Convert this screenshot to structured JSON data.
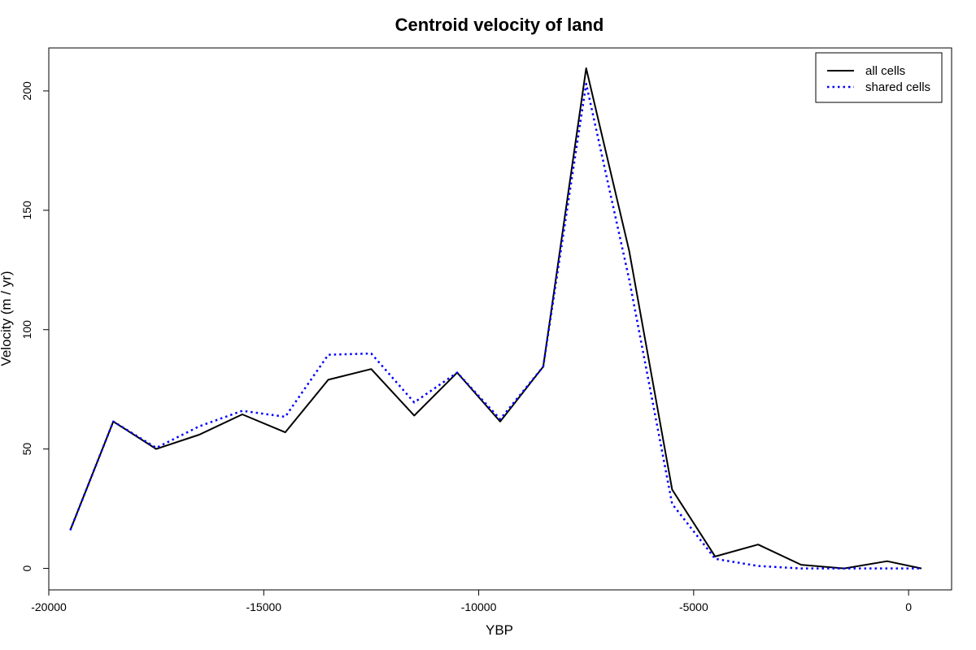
{
  "chart_data": {
    "type": "line",
    "title": "Centroid velocity of land",
    "xlabel": "YBP",
    "ylabel": "Velocity (m / yr)",
    "xlim": [
      -20000,
      1000
    ],
    "ylim": [
      -9,
      218
    ],
    "x_ticks": [
      -20000,
      -15000,
      -10000,
      -5000,
      0
    ],
    "y_ticks": [
      0,
      50,
      100,
      150,
      200
    ],
    "grid": false,
    "legend_position": "top-right",
    "x": [
      -19500,
      -18500,
      -17500,
      -16500,
      -15500,
      -14500,
      -13500,
      -12500,
      -11500,
      -10500,
      -9500,
      -8500,
      -7500,
      -6500,
      -5500,
      -4500,
      -3500,
      -2500,
      -1500,
      -500,
      300
    ],
    "series": [
      {
        "name": "all cells",
        "color": "#000000",
        "style": "solid",
        "values": [
          16,
          61.5,
          50,
          56,
          64.5,
          57,
          79,
          83.5,
          64,
          82,
          61.5,
          84.5,
          209.5,
          133,
          33,
          5,
          10,
          1.5,
          0,
          3,
          0
        ]
      },
      {
        "name": "shared cells",
        "color": "#0000ff",
        "style": "dotted",
        "values": [
          16,
          61.5,
          50.5,
          59.5,
          66,
          63.5,
          89.5,
          90,
          69.5,
          82,
          62.5,
          84.5,
          203,
          121,
          27,
          4,
          1,
          0,
          0,
          0,
          0
        ]
      }
    ]
  }
}
